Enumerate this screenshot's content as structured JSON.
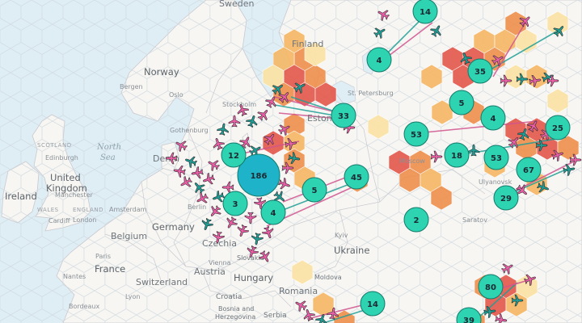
{
  "map": {
    "colors": {
      "water": "#dfeef5",
      "land": "#f7f6f3",
      "border": "#c9c9cf",
      "cluster": "#2ed3b1",
      "cluster_big": "#1fb3c9",
      "cluster_stroke": "#127a6b",
      "plane_pink": "#ec5fa8",
      "plane_teal": "#1f9e96",
      "plane_stroke": "#2a2a2a",
      "hex_dark": "#e4574a",
      "hex_orange": "#f08f4c",
      "hex_amber": "#f6b765",
      "hex_light": "#fbe3a4",
      "hex_grid_stroke": "#cfd8de"
    },
    "icons": [
      "plane-icon",
      "cluster-marker"
    ],
    "country_labels": [
      {
        "name": "sweden",
        "text": "Sweden"
      },
      {
        "name": "finland",
        "text": "Finland"
      },
      {
        "name": "norway",
        "text": "Norway"
      },
      {
        "name": "estonia",
        "text": "Estonia"
      },
      {
        "name": "denmark",
        "text": "Denm"
      },
      {
        "name": "united-kingdom-1",
        "text": "United"
      },
      {
        "name": "united-kingdom-2",
        "text": "Kingdom"
      },
      {
        "name": "ireland",
        "text": "Ireland"
      },
      {
        "name": "germany",
        "text": "Germany"
      },
      {
        "name": "belgium",
        "text": "Belgium"
      },
      {
        "name": "france",
        "text": "France"
      },
      {
        "name": "switzerland",
        "text": "Switzerland"
      },
      {
        "name": "czechia",
        "text": "Czechia"
      },
      {
        "name": "austria",
        "text": "Austria"
      },
      {
        "name": "hungary",
        "text": "Hungary"
      },
      {
        "name": "slovakia",
        "text": "Slovakia"
      },
      {
        "name": "ukraine",
        "text": "Ukraine"
      },
      {
        "name": "romania",
        "text": "Romania"
      },
      {
        "name": "moldova",
        "text": "Moldova"
      },
      {
        "name": "croatia",
        "text": "Croatia"
      },
      {
        "name": "bosnia-1",
        "text": "Bosnia and"
      },
      {
        "name": "bosnia-2",
        "text": "Herzegovina"
      },
      {
        "name": "serbia",
        "text": "Serbia"
      }
    ],
    "city_labels": [
      {
        "name": "bergen",
        "text": "Bergen"
      },
      {
        "name": "oslo",
        "text": "Oslo"
      },
      {
        "name": "stockholm",
        "text": "Stockholm"
      },
      {
        "name": "gothenburg",
        "text": "Gothenburg"
      },
      {
        "name": "saint-petersburg",
        "text": "St. Petersburg"
      },
      {
        "name": "edinburgh",
        "text": "Edinburgh"
      },
      {
        "name": "manchester",
        "text": "Manchester"
      },
      {
        "name": "cardiff",
        "text": "Cardiff"
      },
      {
        "name": "london",
        "text": "London"
      },
      {
        "name": "amsterdam",
        "text": "Amsterdam"
      },
      {
        "name": "berlin",
        "text": "Berlin"
      },
      {
        "name": "paris",
        "text": "Paris"
      },
      {
        "name": "nantes",
        "text": "Nantes"
      },
      {
        "name": "bordeaux",
        "text": "Bordeaux"
      },
      {
        "name": "lyon",
        "text": "Lyon"
      },
      {
        "name": "vienna",
        "text": "Vienna"
      },
      {
        "name": "kyiv",
        "text": "Kyiv"
      },
      {
        "name": "moscow",
        "text": "Moscow"
      },
      {
        "name": "ulyanovsk",
        "text": "Ulyanovsk"
      },
      {
        "name": "saratov",
        "text": "Saratov"
      }
    ],
    "region_labels": [
      {
        "name": "scotland",
        "text": "SCOTLAND"
      },
      {
        "name": "england",
        "text": "ENGLAND"
      },
      {
        "name": "wales",
        "text": "WALES"
      }
    ],
    "sea_labels": [
      {
        "name": "north-sea-1",
        "text": "North"
      },
      {
        "name": "north-sea-2",
        "text": "Sea"
      }
    ],
    "clusters": [
      {
        "name": "cluster-186",
        "count": "186"
      },
      {
        "name": "cluster-12",
        "count": "12"
      },
      {
        "name": "cluster-3",
        "count": "3"
      },
      {
        "name": "cluster-4-berlin",
        "count": "4"
      },
      {
        "name": "cluster-5-baltic",
        "count": "5"
      },
      {
        "name": "cluster-45",
        "count": "45"
      },
      {
        "name": "cluster-33",
        "count": "33"
      },
      {
        "name": "cluster-4-karelia",
        "count": "4"
      },
      {
        "name": "cluster-14-north",
        "count": "14"
      },
      {
        "name": "cluster-35",
        "count": "35"
      },
      {
        "name": "cluster-5-urals",
        "count": "5"
      },
      {
        "name": "cluster-4-urals",
        "count": "4"
      },
      {
        "name": "cluster-53-west",
        "count": "53"
      },
      {
        "name": "cluster-18",
        "count": "18"
      },
      {
        "name": "cluster-53-volga",
        "count": "53"
      },
      {
        "name": "cluster-25",
        "count": "25"
      },
      {
        "name": "cluster-67",
        "count": "67"
      },
      {
        "name": "cluster-29",
        "count": "29"
      },
      {
        "name": "cluster-2",
        "count": "2"
      },
      {
        "name": "cluster-14-south",
        "count": "14"
      },
      {
        "name": "cluster-80",
        "count": "80"
      },
      {
        "name": "cluster-39",
        "count": "39"
      }
    ]
  }
}
